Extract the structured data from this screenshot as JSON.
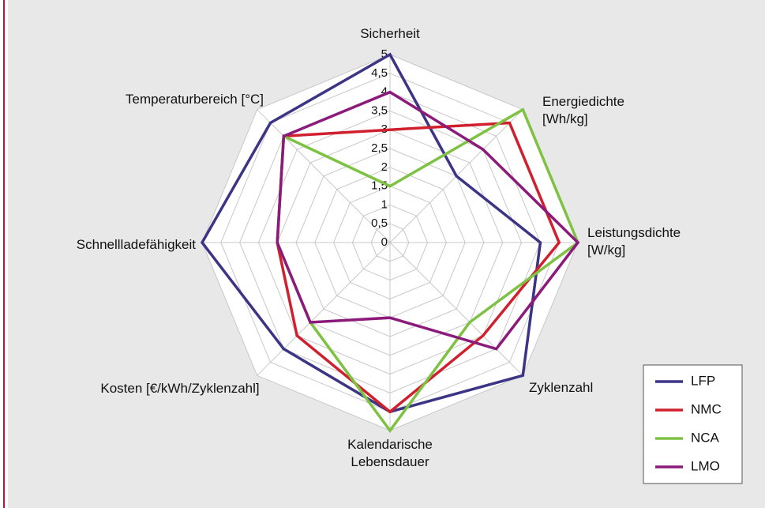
{
  "chart_data": {
    "type": "radar",
    "categories": [
      "Sicherheit",
      "Energiedichte [Wh/kg]",
      "Leistungsdichte [W/kg]",
      "Zyklenzahl",
      "Kalendarische Lebensdauer",
      "Kosten [€/kWh/Zyklenzahl]",
      "Schnellladefähigkeit",
      "Temperaturbereich [°C]"
    ],
    "series": [
      {
        "name": "LFP",
        "color": "#3c3585",
        "values": [
          5,
          2.5,
          4,
          5,
          4.5,
          4,
          5,
          4.5
        ]
      },
      {
        "name": "NMC",
        "color": "#d0202e",
        "values": [
          3,
          4.5,
          4.5,
          3.5,
          4.5,
          3.5,
          3,
          4
        ]
      },
      {
        "name": "NCA",
        "color": "#7dc242",
        "values": [
          1.5,
          5,
          5,
          3,
          5,
          3,
          3,
          4
        ]
      },
      {
        "name": "LMO",
        "color": "#8b1a7a",
        "values": [
          4,
          3.5,
          5,
          4,
          2,
          3,
          3,
          4
        ]
      }
    ],
    "ylim": [
      0,
      5
    ],
    "yticks": [
      0,
      {
        "value": 0.5,
        "label": "0,5"
      },
      1,
      {
        "value": 1.5,
        "label": "1,5"
      },
      2,
      {
        "value": 2.5,
        "label": "2,5"
      },
      3,
      {
        "value": 3.5,
        "label": "3,5"
      },
      4,
      {
        "value": 4.5,
        "label": "4,5"
      },
      5
    ],
    "grid": true,
    "legend": "lower right"
  }
}
